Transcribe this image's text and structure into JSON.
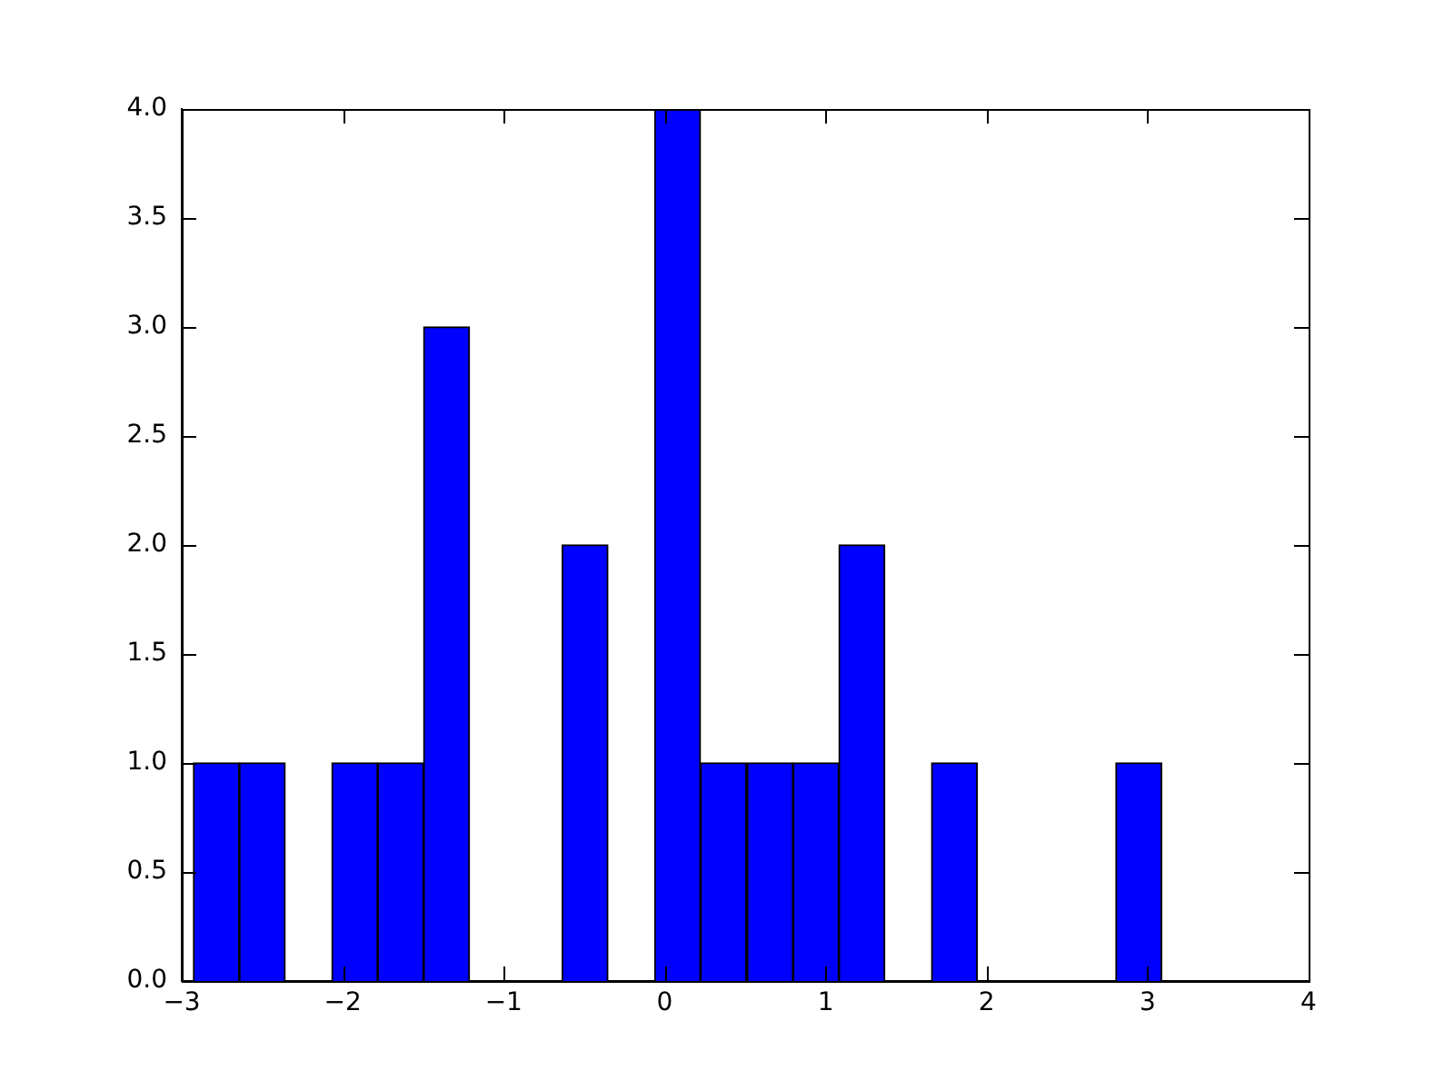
{
  "chart_data": {
    "type": "histogram",
    "bins": [
      -2.93,
      -2.64,
      -2.36,
      -2.07,
      -1.78,
      -1.5,
      -1.21,
      -0.92,
      -0.64,
      -0.35,
      -0.06,
      0.22,
      0.51,
      0.8,
      1.08,
      1.37,
      1.66,
      1.94,
      2.23,
      2.52,
      2.8,
      3.09
    ],
    "values": [
      1,
      1,
      0,
      1,
      1,
      3,
      0,
      0,
      2,
      0,
      4,
      1,
      1,
      1,
      2,
      0,
      1,
      0,
      0,
      0,
      1
    ],
    "color": "#0000ff",
    "xlim": [
      -3,
      4
    ],
    "xticks": [
      {
        "value": -3,
        "label": "−3"
      },
      {
        "value": -2,
        "label": "−2"
      },
      {
        "value": -1,
        "label": "−1"
      },
      0,
      1,
      2,
      3,
      4
    ],
    "ylim": [
      0,
      4
    ],
    "yticks": [
      {
        "value": 0,
        "label": "0.0"
      },
      {
        "value": 0.5,
        "label": "0.5"
      },
      {
        "value": 1,
        "label": "1.0"
      },
      {
        "value": 1.5,
        "label": "1.5"
      },
      {
        "value": 2,
        "label": "2.0"
      },
      {
        "value": 2.5,
        "label": "2.5"
      },
      {
        "value": 3,
        "label": "3.0"
      },
      {
        "value": 3.5,
        "label": "3.5"
      },
      {
        "value": 4,
        "label": "4.0"
      }
    ],
    "grid": false
  }
}
